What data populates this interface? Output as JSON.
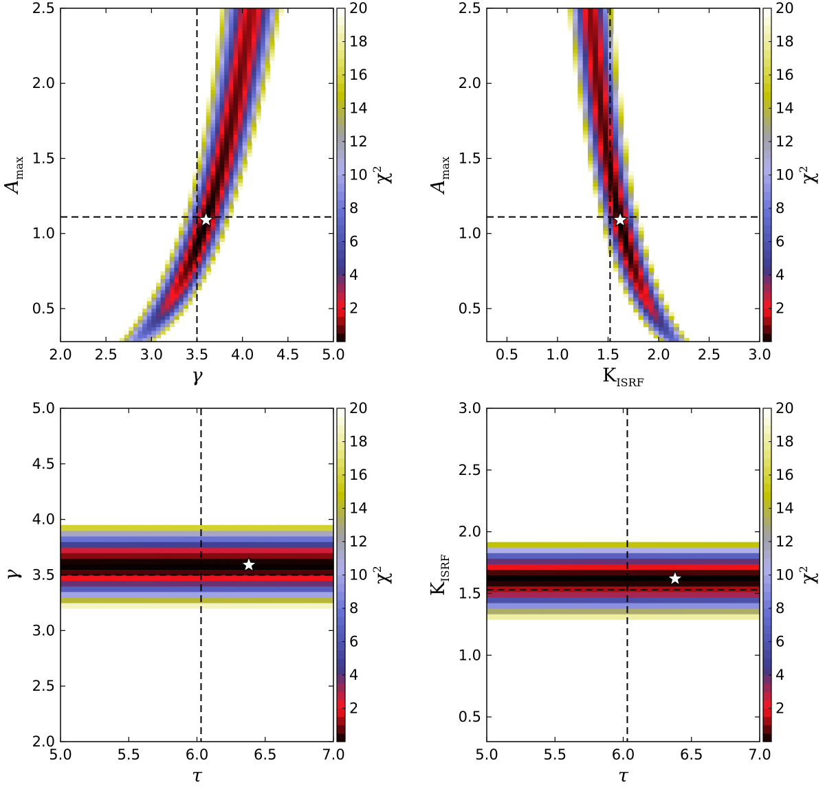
{
  "chart_data": [
    {
      "type": "heatmap",
      "panel": "top-left",
      "xlabel": "γ",
      "ylabel": "A",
      "ylabel_sub": "max",
      "xlim": [
        2.0,
        5.0
      ],
      "ylim": [
        0.28,
        2.5
      ],
      "xticks": [
        "2.0",
        "2.5",
        "3.0",
        "3.5",
        "4.0",
        "4.5",
        "5.0"
      ],
      "yticks": [
        "0.5",
        "1.0",
        "1.5",
        "2.0",
        "2.5"
      ],
      "dashed_vline": 3.5,
      "dashed_hline": 1.11,
      "best_fit": {
        "x": 3.6,
        "y": 1.09
      },
      "colorbar": {
        "label": "χ",
        "label_sup": "2",
        "range": [
          0,
          20
        ],
        "ticks": [
          "2",
          "4",
          "6",
          "8",
          "10",
          "12",
          "14",
          "16",
          "18",
          "20"
        ]
      }
    },
    {
      "type": "heatmap",
      "panel": "top-right",
      "xlabel": "K",
      "xlabel_sub": "ISRF",
      "ylabel": "A",
      "ylabel_sub": "max",
      "xlim": [
        0.3,
        3.0
      ],
      "ylim": [
        0.28,
        2.5
      ],
      "xticks": [
        "0.5",
        "1.0",
        "1.5",
        "2.0",
        "2.5",
        "3.0"
      ],
      "yticks": [
        "0.5",
        "1.0",
        "1.5",
        "2.0",
        "2.5"
      ],
      "dashed_vline": 1.52,
      "dashed_hline": 1.11,
      "best_fit": {
        "x": 1.62,
        "y": 1.09
      },
      "colorbar": {
        "label": "χ",
        "label_sup": "2",
        "range": [
          0,
          20
        ],
        "ticks": [
          "2",
          "4",
          "6",
          "8",
          "10",
          "12",
          "14",
          "16",
          "18",
          "20"
        ]
      }
    },
    {
      "type": "heatmap",
      "panel": "bottom-left",
      "xlabel": "τ",
      "ylabel": "γ",
      "xlim": [
        5.0,
        7.0
      ],
      "ylim": [
        2.0,
        5.0
      ],
      "xticks": [
        "5.0",
        "5.5",
        "6.0",
        "6.5",
        "7.0"
      ],
      "yticks": [
        "2.0",
        "2.5",
        "3.0",
        "3.5",
        "4.0",
        "4.5",
        "5.0"
      ],
      "dashed_vline": 6.03,
      "dashed_hline": 3.5,
      "best_fit": {
        "x": 6.38,
        "y": 3.59
      },
      "colorbar": {
        "label": "χ",
        "label_sup": "2",
        "range": [
          0,
          20
        ],
        "ticks": [
          "2",
          "4",
          "6",
          "8",
          "10",
          "12",
          "14",
          "16",
          "18",
          "20"
        ]
      }
    },
    {
      "type": "heatmap",
      "panel": "bottom-right",
      "xlabel": "τ",
      "ylabel": "K",
      "ylabel_sub": "ISRF",
      "xlim": [
        5.0,
        7.0
      ],
      "ylim": [
        0.3,
        3.0
      ],
      "xticks": [
        "5.0",
        "5.5",
        "6.0",
        "6.5",
        "7.0"
      ],
      "yticks": [
        "0.5",
        "1.0",
        "1.5",
        "2.0",
        "2.5",
        "3.0"
      ],
      "dashed_vline": 6.03,
      "dashed_hline": 1.53,
      "best_fit": {
        "x": 6.38,
        "y": 1.62
      },
      "colorbar": {
        "label": "χ",
        "label_sup": "2",
        "range": [
          0,
          20
        ],
        "ticks": [
          "2",
          "4",
          "6",
          "8",
          "10",
          "12",
          "14",
          "16",
          "18",
          "20"
        ]
      }
    }
  ]
}
